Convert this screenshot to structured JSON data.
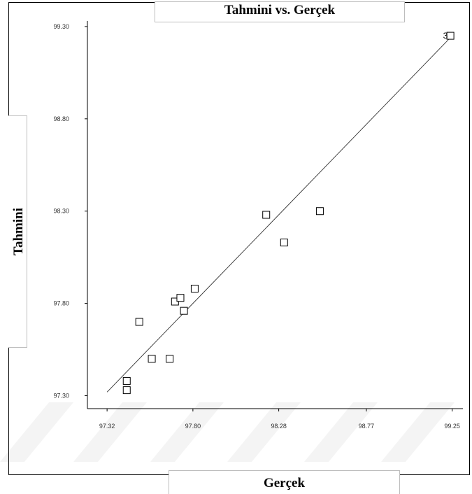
{
  "chart_data": {
    "type": "scatter",
    "title": "Tahmini vs. Gerçek",
    "xlabel": "Gerçek",
    "ylabel": "Tahmini",
    "xlim": [
      97.21,
      99.31
    ],
    "ylim": [
      97.23,
      99.33
    ],
    "x_ticks": [
      97.32,
      97.8,
      98.28,
      98.77,
      99.25
    ],
    "x_tick_labels": [
      "97.32",
      "97.80",
      "98.28",
      "98.77",
      "99.25"
    ],
    "y_ticks": [
      97.3,
      97.8,
      98.3,
      98.8,
      99.3
    ],
    "y_tick_labels": [
      "97.30",
      "97.80",
      "98.30",
      "98.80",
      "99.30"
    ],
    "grid": false,
    "legend": "none",
    "fit_line": {
      "x": [
        97.32,
        99.25
      ],
      "y": [
        97.32,
        99.25
      ]
    },
    "series": [
      {
        "marker": "open-square",
        "x": [
          97.43,
          97.43,
          97.5,
          97.57,
          97.67,
          97.7,
          97.73,
          97.75,
          97.81,
          98.21,
          98.31,
          98.51,
          99.24
        ],
        "y": [
          97.33,
          97.38,
          97.7,
          97.5,
          97.5,
          97.81,
          97.83,
          97.76,
          97.88,
          98.28,
          98.13,
          98.3,
          99.25
        ]
      }
    ],
    "point_annotations": [
      {
        "text": "3",
        "x": 99.22,
        "y": 99.25
      }
    ]
  }
}
